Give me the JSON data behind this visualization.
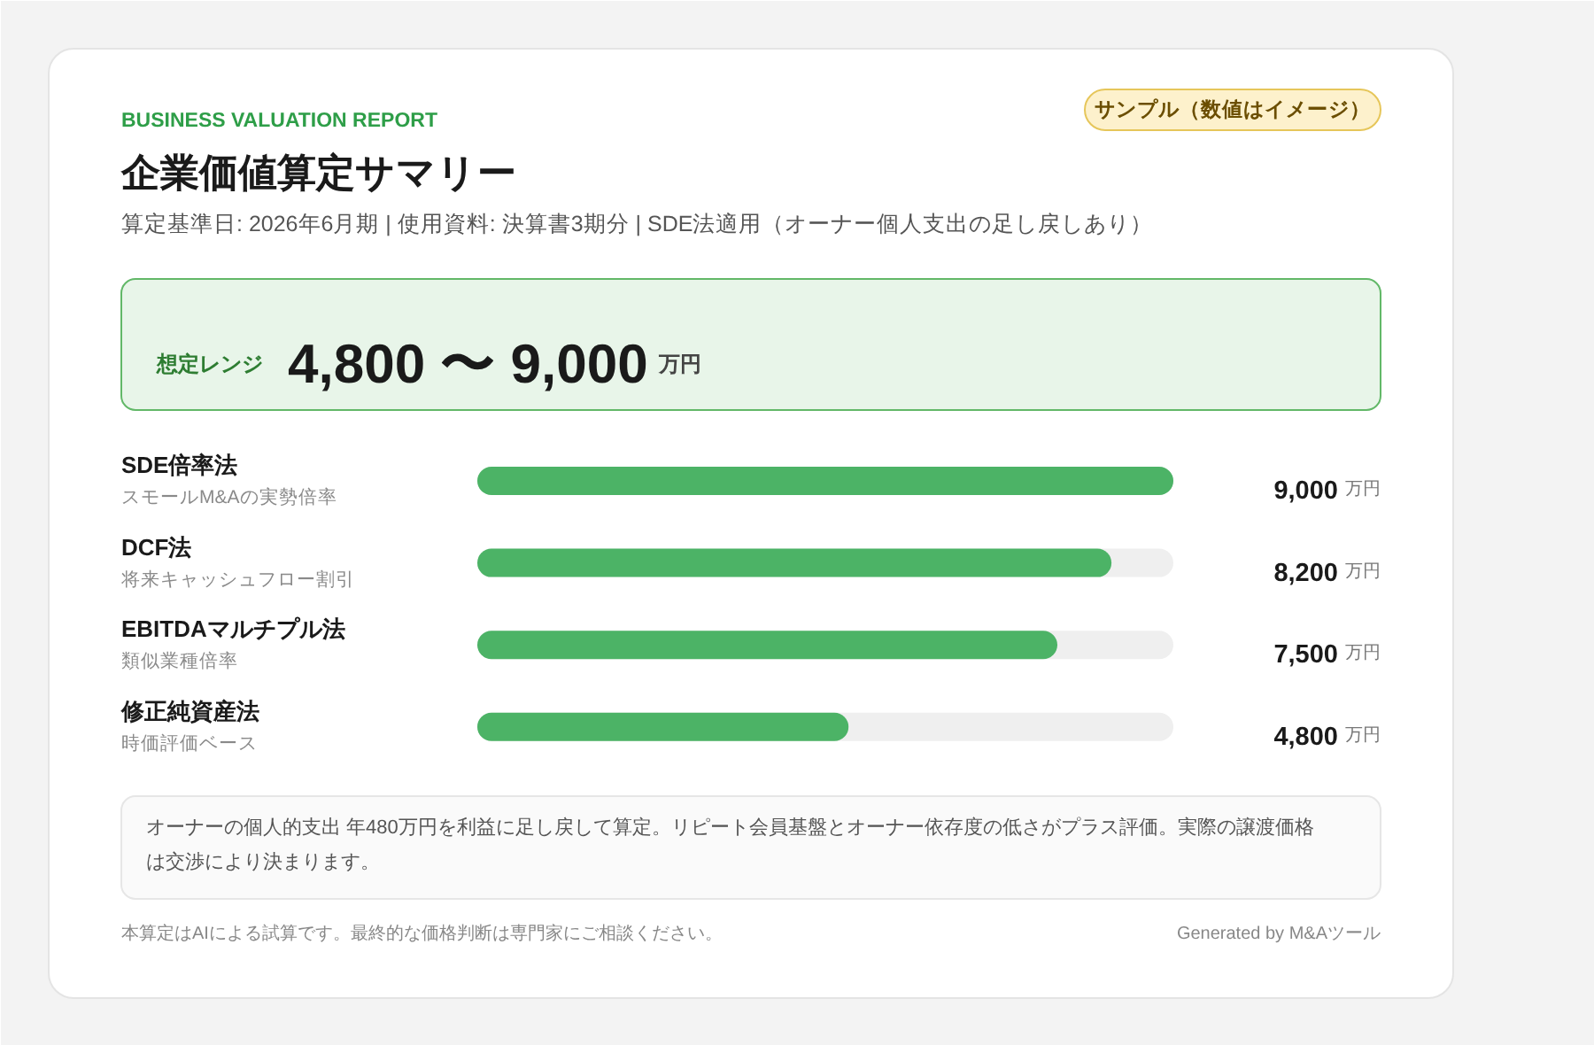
{
  "chart_data": {
    "type": "bar",
    "orientation": "horizontal",
    "title": "企業価値算定サマリー",
    "subtitle": "算定基準日: 2026年6月期  |  使用資料: 決算書3期分  |  SDE法適用（オーナー個人支出の足し戻しあり）",
    "categories": [
      "SDE倍率法",
      "DCF法",
      "EBITDAマルチプル法",
      "修正純資産法"
    ],
    "values": [
      9000,
      8200,
      7500,
      4800
    ],
    "color": "#4cb366",
    "value_labels": [
      "9,000 万円",
      "8,200 万円",
      "7,500 万円",
      "4,800 万円"
    ],
    "annotations": [
      "BUSINESS VALUATION REPORT",
      "サンプル（数値はイメージ）",
      "想定レンジ",
      "4,800 〜 9,000 万円",
      "オーナーの個人的支出 年480万円を利益に足し戻して算定。リピート会員基盤とオーナー依存度の低さがプラス評価。実際の譲渡価格は交渉により決まります。",
      "本算定はAIによる試算です。最終的な価格判断は専門家にご相談ください。",
      "Generated by M&Aツール",
      "スモールM&Aの実勢倍率",
      "将来キャッシュフロー割引",
      "類似業種倍率",
      "時価評価ベース"
    ]
  }
}
